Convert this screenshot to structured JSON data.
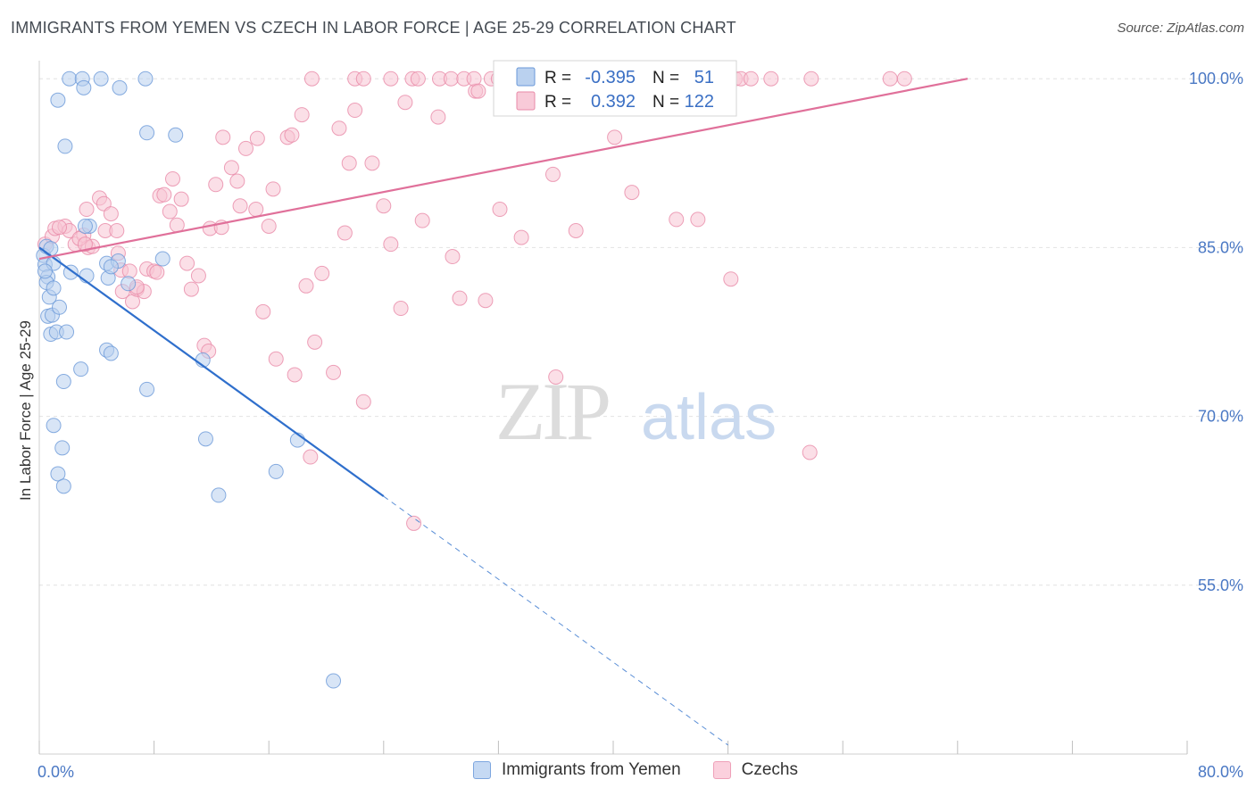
{
  "header": {
    "title": "IMMIGRANTS FROM YEMEN VS CZECH IN LABOR FORCE | AGE 25-29 CORRELATION CHART",
    "source": "Source: ZipAtlas.com"
  },
  "watermark": {
    "zip": "ZIP",
    "atlas": "atlas"
  },
  "legend": {
    "rows": [
      {
        "r_label": "R =",
        "r_value": "-0.395",
        "n_label": "N =",
        "n_value": "51",
        "color": "#9dbde8",
        "stroke": "#6a98d8"
      },
      {
        "r_label": "R =",
        "r_value": "0.392",
        "n_label": "N =",
        "n_value": "122",
        "color": "#f5b4c8",
        "stroke": "#e88aa8"
      }
    ]
  },
  "bottom_legend": [
    {
      "label": "Immigrants from Yemen",
      "color": "#c5d9f3",
      "stroke": "#7da6df"
    },
    {
      "label": "Czechs",
      "color": "#fbd0dd",
      "stroke": "#eea0b8"
    }
  ],
  "chart_data": {
    "type": "scatter",
    "title": "IMMIGRANTS FROM YEMEN VS CZECH IN LABOR FORCE | AGE 25-29 CORRELATION CHART",
    "xlabel": "",
    "ylabel": "In Labor Force | Age 25-29",
    "xlim": [
      0,
      80
    ],
    "ylim": [
      40,
      102
    ],
    "x_tick_labels": [
      "0.0%",
      "80.0%"
    ],
    "y_ticks": [
      55,
      70,
      85,
      100
    ],
    "y_tick_labels": [
      "55.0%",
      "70.0%",
      "85.0%",
      "100.0%"
    ],
    "grid": true,
    "series": [
      {
        "name": "Immigrants from Yemen",
        "color": "#6a98d8",
        "fill": "#b8d0ef",
        "trend": {
          "x1": 0,
          "y1": 85.0,
          "x2": 24.0,
          "y2": 62.9,
          "dash_to_x": 48.0,
          "dash_to_y": 40.8
        },
        "points": [
          [
            0.3,
            84.3
          ],
          [
            0.5,
            85.1
          ],
          [
            0.4,
            83.5
          ],
          [
            0.6,
            82.4
          ],
          [
            0.8,
            84.9
          ],
          [
            0.5,
            81.9
          ],
          [
            0.7,
            80.6
          ],
          [
            1.0,
            81.4
          ],
          [
            0.6,
            78.9
          ],
          [
            0.9,
            79.0
          ],
          [
            1.4,
            79.7
          ],
          [
            0.8,
            77.3
          ],
          [
            1.2,
            77.5
          ],
          [
            1.9,
            77.5
          ],
          [
            1.7,
            73.1
          ],
          [
            2.9,
            74.2
          ],
          [
            1.0,
            69.2
          ],
          [
            1.6,
            67.2
          ],
          [
            1.3,
            64.9
          ],
          [
            1.7,
            63.8
          ],
          [
            2.2,
            82.8
          ],
          [
            3.3,
            82.5
          ],
          [
            4.8,
            82.3
          ],
          [
            3.5,
            86.9
          ],
          [
            4.7,
            83.6
          ],
          [
            5.5,
            83.8
          ],
          [
            6.2,
            81.8
          ],
          [
            4.7,
            75.9
          ],
          [
            5.0,
            75.6
          ],
          [
            7.5,
            72.4
          ],
          [
            8.6,
            84.0
          ],
          [
            11.4,
            75.0
          ],
          [
            11.6,
            68.0
          ],
          [
            12.5,
            63.0
          ],
          [
            16.5,
            65.1
          ],
          [
            18.0,
            67.9
          ],
          [
            20.5,
            46.5
          ],
          [
            2.1,
            100.0
          ],
          [
            3.0,
            100.0
          ],
          [
            4.3,
            100.0
          ],
          [
            7.4,
            100.0
          ],
          [
            3.1,
            99.2
          ],
          [
            5.6,
            99.2
          ],
          [
            1.3,
            98.1
          ],
          [
            7.5,
            95.2
          ],
          [
            9.5,
            95.0
          ],
          [
            1.8,
            94.0
          ],
          [
            3.2,
            86.9
          ],
          [
            5.0,
            83.3
          ],
          [
            1.0,
            83.6
          ],
          [
            0.4,
            82.9
          ]
        ]
      },
      {
        "name": "Czechs",
        "color": "#e88aa8",
        "fill": "#f8c4d4",
        "trend": {
          "x1": 0,
          "y1": 84.0,
          "x2": 64.7,
          "y2": 100.0
        },
        "points": [
          [
            0.4,
            85.3
          ],
          [
            0.9,
            86.0
          ],
          [
            1.1,
            86.7
          ],
          [
            1.8,
            86.9
          ],
          [
            2.1,
            86.5
          ],
          [
            2.5,
            85.3
          ],
          [
            3.1,
            86.1
          ],
          [
            3.4,
            85.0
          ],
          [
            3.7,
            85.1
          ],
          [
            3.3,
            88.4
          ],
          [
            4.2,
            89.4
          ],
          [
            4.5,
            88.9
          ],
          [
            4.6,
            86.5
          ],
          [
            5.0,
            88.0
          ],
          [
            5.5,
            84.5
          ],
          [
            5.7,
            83.0
          ],
          [
            6.3,
            82.9
          ],
          [
            5.8,
            81.1
          ],
          [
            6.5,
            80.2
          ],
          [
            6.8,
            81.3
          ],
          [
            7.3,
            81.1
          ],
          [
            7.5,
            83.1
          ],
          [
            8.0,
            82.9
          ],
          [
            8.2,
            82.8
          ],
          [
            8.4,
            89.6
          ],
          [
            8.7,
            89.7
          ],
          [
            9.1,
            88.2
          ],
          [
            9.3,
            91.1
          ],
          [
            9.6,
            87.0
          ],
          [
            9.9,
            89.3
          ],
          [
            10.3,
            83.6
          ],
          [
            10.6,
            81.3
          ],
          [
            11.1,
            82.5
          ],
          [
            11.5,
            76.3
          ],
          [
            11.8,
            75.8
          ],
          [
            11.9,
            86.7
          ],
          [
            12.3,
            90.6
          ],
          [
            12.7,
            86.8
          ],
          [
            12.8,
            94.8
          ],
          [
            13.4,
            92.1
          ],
          [
            13.8,
            90.9
          ],
          [
            14.0,
            88.7
          ],
          [
            14.4,
            93.8
          ],
          [
            15.1,
            88.4
          ],
          [
            15.2,
            94.7
          ],
          [
            15.6,
            79.3
          ],
          [
            16.0,
            86.9
          ],
          [
            16.3,
            90.2
          ],
          [
            16.5,
            75.1
          ],
          [
            17.3,
            94.8
          ],
          [
            17.6,
            95.0
          ],
          [
            17.8,
            73.7
          ],
          [
            18.3,
            96.8
          ],
          [
            18.6,
            81.6
          ],
          [
            18.9,
            66.4
          ],
          [
            19.2,
            76.6
          ],
          [
            19.7,
            82.7
          ],
          [
            20.5,
            73.9
          ],
          [
            20.9,
            95.6
          ],
          [
            21.3,
            86.3
          ],
          [
            21.6,
            92.5
          ],
          [
            22.0,
            97.2
          ],
          [
            22.6,
            71.3
          ],
          [
            23.2,
            92.5
          ],
          [
            24.0,
            88.7
          ],
          [
            24.5,
            85.3
          ],
          [
            25.2,
            79.6
          ],
          [
            25.5,
            97.9
          ],
          [
            26.1,
            60.5
          ],
          [
            26.7,
            87.4
          ],
          [
            27.8,
            96.6
          ],
          [
            28.8,
            84.2
          ],
          [
            29.3,
            80.5
          ],
          [
            30.4,
            98.9
          ],
          [
            31.1,
            80.3
          ],
          [
            32.1,
            88.4
          ],
          [
            33.6,
            85.9
          ],
          [
            35.8,
            91.5
          ],
          [
            36.0,
            73.5
          ],
          [
            37.4,
            86.5
          ],
          [
            40.1,
            94.8
          ],
          [
            41.3,
            89.9
          ],
          [
            44.4,
            87.5
          ],
          [
            45.9,
            87.5
          ],
          [
            48.2,
            82.2
          ],
          [
            53.7,
            66.8
          ],
          [
            19.0,
            100.0
          ],
          [
            22.0,
            100.0
          ],
          [
            22.6,
            100.0
          ],
          [
            24.5,
            100.0
          ],
          [
            26.0,
            100.0
          ],
          [
            26.4,
            100.0
          ],
          [
            27.9,
            100.0
          ],
          [
            28.7,
            100.0
          ],
          [
            29.6,
            100.0
          ],
          [
            30.3,
            100.0
          ],
          [
            31.5,
            100.0
          ],
          [
            32.0,
            100.0
          ],
          [
            33.2,
            100.0
          ],
          [
            34.7,
            100.0
          ],
          [
            36.0,
            100.0
          ],
          [
            37.2,
            100.0
          ],
          [
            38.0,
            100.0
          ],
          [
            38.8,
            100.0
          ],
          [
            40.1,
            100.0
          ],
          [
            41.2,
            100.0
          ],
          [
            42.2,
            100.0
          ],
          [
            43.8,
            100.0
          ],
          [
            45.0,
            100.0
          ],
          [
            46.3,
            100.0
          ],
          [
            47.4,
            100.0
          ],
          [
            48.5,
            100.0
          ],
          [
            48.9,
            100.0
          ],
          [
            49.6,
            100.0
          ],
          [
            51.0,
            100.0
          ],
          [
            53.8,
            100.0
          ],
          [
            59.3,
            100.0
          ],
          [
            60.3,
            100.0
          ],
          [
            30.6,
            98.9
          ],
          [
            5.4,
            86.5
          ],
          [
            2.8,
            85.8
          ],
          [
            1.4,
            86.8
          ],
          [
            6.8,
            81.5
          ],
          [
            3.2,
            85.3
          ]
        ]
      }
    ]
  }
}
